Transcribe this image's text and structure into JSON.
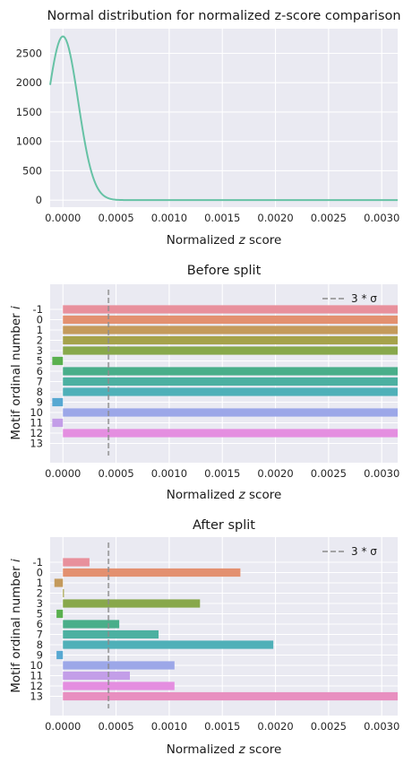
{
  "chart_data": [
    {
      "type": "line",
      "title": "Normal distribution for normalized z-score comparison",
      "xlabel": "Normalized z score",
      "ylabel": "",
      "xlim": [
        -0.00012,
        0.00315
      ],
      "ylim": [
        -120,
        2920
      ],
      "xticks": [
        0.0,
        0.0005,
        0.001,
        0.0015,
        0.002,
        0.0025,
        0.003
      ],
      "xtick_labels": [
        "0.0000",
        "0.0005",
        "0.0010",
        "0.0015",
        "0.0020",
        "0.0025",
        "0.0030"
      ],
      "yticks": [
        0,
        500,
        1000,
        1500,
        2000,
        2500
      ],
      "ytick_labels": [
        "0",
        "500",
        "1000",
        "1500",
        "2000",
        "2500"
      ],
      "grid": true,
      "color": "#66c2a5",
      "series": [
        {
          "mean": 0.0,
          "std": 0.000143,
          "peak": 2790
        }
      ]
    },
    {
      "type": "bar",
      "orientation": "horizontal",
      "title": "Before split",
      "xlabel": "Normalized z score",
      "ylabel": "Motif ordinal number i",
      "xlim": [
        -0.00012,
        0.00315
      ],
      "xticks": [
        0.0,
        0.0005,
        0.001,
        0.0015,
        0.002,
        0.0025,
        0.003
      ],
      "xtick_labels": [
        "0.0000",
        "0.0005",
        "0.0010",
        "0.0015",
        "0.0020",
        "0.0025",
        "0.0030"
      ],
      "categories": [
        "-1",
        "0",
        "1",
        "2",
        "3",
        "5",
        "6",
        "7",
        "8",
        "9",
        "10",
        "11",
        "12",
        "13"
      ],
      "values": [
        0.0032,
        0.0032,
        0.0032,
        0.0032,
        0.0032,
        -0.0001,
        0.0032,
        0.0032,
        0.0032,
        -0.0001,
        0.0032,
        -0.0001,
        0.0032,
        0.0
      ],
      "colors": [
        "#e8909c",
        "#e39070",
        "#c49a5c",
        "#a5a24b",
        "#88a84b",
        "#5ab04f",
        "#49ae8a",
        "#4cb0a1",
        "#4fb0b8",
        "#57a8d2",
        "#9ca7e8",
        "#c39ee8",
        "#e48ee0",
        "#e88fc0"
      ],
      "threshold": {
        "label": "3 * σ",
        "value": 0.000429
      },
      "legend": "top-right",
      "grid": true
    },
    {
      "type": "bar",
      "orientation": "horizontal",
      "title": "After split",
      "xlabel": "Normalized z score",
      "ylabel": "Motif ordinal number i",
      "xlim": [
        -0.00012,
        0.00315
      ],
      "xticks": [
        0.0,
        0.0005,
        0.001,
        0.0015,
        0.002,
        0.0025,
        0.003
      ],
      "xtick_labels": [
        "0.0000",
        "0.0005",
        "0.0010",
        "0.0015",
        "0.0020",
        "0.0025",
        "0.0030"
      ],
      "categories": [
        "-1",
        "0",
        "1",
        "2",
        "3",
        "5",
        "6",
        "7",
        "8",
        "9",
        "10",
        "11",
        "12",
        "13"
      ],
      "values": [
        0.00025,
        0.00167,
        -8e-05,
        1e-05,
        0.00129,
        -6e-05,
        0.00053,
        0.0009,
        0.00198,
        -6e-05,
        0.00105,
        0.00063,
        0.00105,
        0.0032
      ],
      "colors": [
        "#e8909c",
        "#e39070",
        "#c49a5c",
        "#a5a24b",
        "#88a84b",
        "#5ab04f",
        "#49ae8a",
        "#4cb0a1",
        "#4fb0b8",
        "#57a8d2",
        "#9ca7e8",
        "#c39ee8",
        "#e48ee0",
        "#e88fc0"
      ],
      "threshold": {
        "label": "3 * σ",
        "value": 0.000429
      },
      "legend": "top-right",
      "grid": true
    }
  ]
}
